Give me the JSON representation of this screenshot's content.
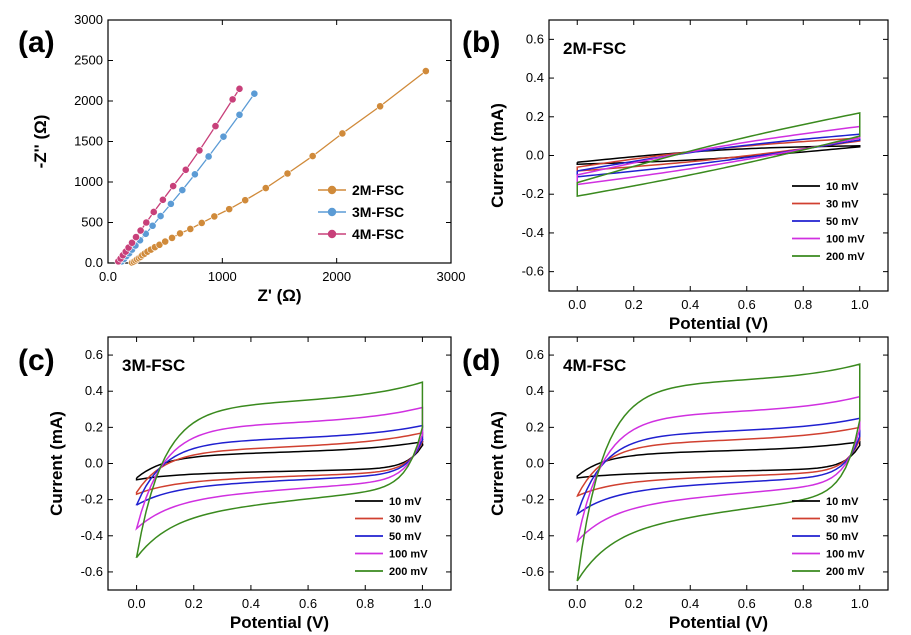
{
  "chart_data": [
    {
      "panel_label": "(a)",
      "type": "scatter",
      "xlabel": "Z' (Ω)",
      "ylabel": "-Z'' (Ω)",
      "xlim": [
        0,
        3000
      ],
      "ylim": [
        0,
        3000
      ],
      "xticks": [
        0,
        1000,
        2000,
        3000
      ],
      "yticks": [
        0,
        500,
        1000,
        1500,
        2000,
        2500,
        3000
      ],
      "legend_position": "lower-right",
      "series": [
        {
          "name": "2M-FSC",
          "color": "#d08a3a",
          "x": [
            210,
            225,
            240,
            255,
            270,
            285,
            300,
            320,
            345,
            375,
            410,
            450,
            500,
            560,
            630,
            720,
            820,
            930,
            1060,
            1200,
            1380,
            1570,
            1790,
            2050,
            2380,
            2780
          ],
          "y": [
            5,
            15,
            30,
            45,
            60,
            75,
            95,
            115,
            140,
            165,
            195,
            225,
            265,
            310,
            365,
            420,
            495,
            575,
            665,
            775,
            925,
            1105,
            1320,
            1600,
            1935,
            2370
          ]
        },
        {
          "name": "3M-FSC",
          "color": "#5b9bd5",
          "x": [
            120,
            140,
            160,
            185,
            210,
            240,
            280,
            330,
            390,
            460,
            550,
            650,
            760,
            880,
            1010,
            1150,
            1280
          ],
          "y": [
            20,
            50,
            85,
            120,
            165,
            215,
            280,
            360,
            460,
            580,
            730,
            900,
            1095,
            1315,
            1560,
            1830,
            2090
          ]
        },
        {
          "name": "4M-FSC",
          "color": "#c8407a",
          "x": [
            90,
            110,
            130,
            155,
            180,
            210,
            245,
            285,
            335,
            400,
            480,
            570,
            680,
            800,
            940,
            1090,
            1150
          ],
          "y": [
            20,
            55,
            95,
            140,
            190,
            250,
            320,
            400,
            500,
            630,
            780,
            950,
            1150,
            1390,
            1690,
            2020,
            2150
          ]
        }
      ]
    },
    {
      "panel_label": "(b)",
      "title": "2M-FSC",
      "type": "line",
      "xlabel": "Potential (V)",
      "ylabel": "Current (mA)",
      "xlim": [
        -0.1,
        1.1
      ],
      "ylim": [
        -0.7,
        0.7
      ],
      "xticks": [
        0.0,
        0.2,
        0.4,
        0.6,
        0.8,
        1.0
      ],
      "yticks": [
        -0.6,
        -0.4,
        -0.2,
        0.0,
        0.2,
        0.4,
        0.6
      ],
      "legend_position": "lower-right",
      "series": [
        {
          "name": "10 mV",
          "color": "#000000",
          "upper_start": -0.035,
          "upper_end": 0.05,
          "lower_start": -0.045,
          "lower_end": 0.045
        },
        {
          "name": "30 mV",
          "color": "#d04030",
          "upper_start": -0.06,
          "upper_end": 0.09,
          "lower_start": -0.08,
          "lower_end": 0.075
        },
        {
          "name": "50 mV",
          "color": "#2020d0",
          "upper_start": -0.08,
          "upper_end": 0.11,
          "lower_start": -0.11,
          "lower_end": 0.08
        },
        {
          "name": "100 mV",
          "color": "#d030e0",
          "upper_start": -0.1,
          "upper_end": 0.15,
          "lower_start": -0.15,
          "lower_end": 0.09
        },
        {
          "name": "200 mV",
          "color": "#3a8a1e",
          "upper_start": -0.14,
          "upper_end": 0.22,
          "lower_start": -0.21,
          "lower_end": 0.1
        }
      ]
    },
    {
      "panel_label": "(c)",
      "title": "3M-FSC",
      "type": "line",
      "xlabel": "Potential (V)",
      "ylabel": "Current (mA)",
      "xlim": [
        -0.1,
        1.1
      ],
      "ylim": [
        -0.7,
        0.7
      ],
      "xticks": [
        0.0,
        0.2,
        0.4,
        0.6,
        0.8,
        1.0
      ],
      "yticks": [
        -0.6,
        -0.4,
        -0.2,
        0.0,
        0.2,
        0.4,
        0.6
      ],
      "legend_position": "lower-right",
      "series": [
        {
          "name": "10 mV",
          "color": "#000000",
          "upper_start": -0.08,
          "upper_mid": 0.04,
          "upper_end": 0.12,
          "lower_start": -0.09,
          "lower_mid": -0.06,
          "lower_end": 0.1
        },
        {
          "name": "30 mV",
          "color": "#d04030",
          "upper_start": -0.16,
          "upper_mid": 0.06,
          "upper_end": 0.17,
          "lower_start": -0.17,
          "lower_mid": -0.1,
          "lower_end": 0.12
        },
        {
          "name": "50 mV",
          "color": "#2020d0",
          "upper_start": -0.23,
          "upper_mid": 0.11,
          "upper_end": 0.21,
          "lower_start": -0.23,
          "lower_mid": -0.13,
          "lower_end": 0.13
        },
        {
          "name": "100 mV",
          "color": "#d030e0",
          "upper_start": -0.36,
          "upper_mid": 0.19,
          "upper_end": 0.31,
          "lower_start": -0.36,
          "lower_mid": -0.2,
          "lower_end": 0.16
        },
        {
          "name": "200 mV",
          "color": "#3a8a1e",
          "upper_start": -0.52,
          "upper_mid": 0.3,
          "upper_end": 0.45,
          "lower_start": -0.52,
          "lower_mid": -0.29,
          "lower_end": 0.2
        }
      ]
    },
    {
      "panel_label": "(d)",
      "title": "4M-FSC",
      "type": "line",
      "xlabel": "Potential (V)",
      "ylabel": "Current (mA)",
      "xlim": [
        -0.1,
        1.1
      ],
      "ylim": [
        -0.7,
        0.7
      ],
      "xticks": [
        0.0,
        0.2,
        0.4,
        0.6,
        0.8,
        1.0
      ],
      "yticks": [
        -0.6,
        -0.4,
        -0.2,
        0.0,
        0.2,
        0.4,
        0.6
      ],
      "legend_position": "lower-right",
      "series": [
        {
          "name": "10 mV",
          "color": "#000000",
          "upper_start": -0.07,
          "upper_mid": 0.05,
          "upper_end": 0.12,
          "lower_start": -0.08,
          "lower_mid": -0.06,
          "lower_end": 0.1
        },
        {
          "name": "30 mV",
          "color": "#d04030",
          "upper_start": -0.18,
          "upper_mid": 0.1,
          "upper_end": 0.2,
          "lower_start": -0.18,
          "lower_mid": -0.1,
          "lower_end": 0.13
        },
        {
          "name": "50 mV",
          "color": "#2020d0",
          "upper_start": -0.28,
          "upper_mid": 0.15,
          "upper_end": 0.25,
          "lower_start": -0.28,
          "lower_mid": -0.15,
          "lower_end": 0.15
        },
        {
          "name": "100 mV",
          "color": "#d030e0",
          "upper_start": -0.43,
          "upper_mid": 0.25,
          "upper_end": 0.37,
          "lower_start": -0.43,
          "lower_mid": -0.24,
          "lower_end": 0.19
        },
        {
          "name": "200 mV",
          "color": "#3a8a1e",
          "upper_start": -0.65,
          "upper_mid": 0.42,
          "upper_end": 0.55,
          "lower_start": -0.65,
          "lower_mid": -0.37,
          "lower_end": 0.24
        }
      ]
    }
  ]
}
